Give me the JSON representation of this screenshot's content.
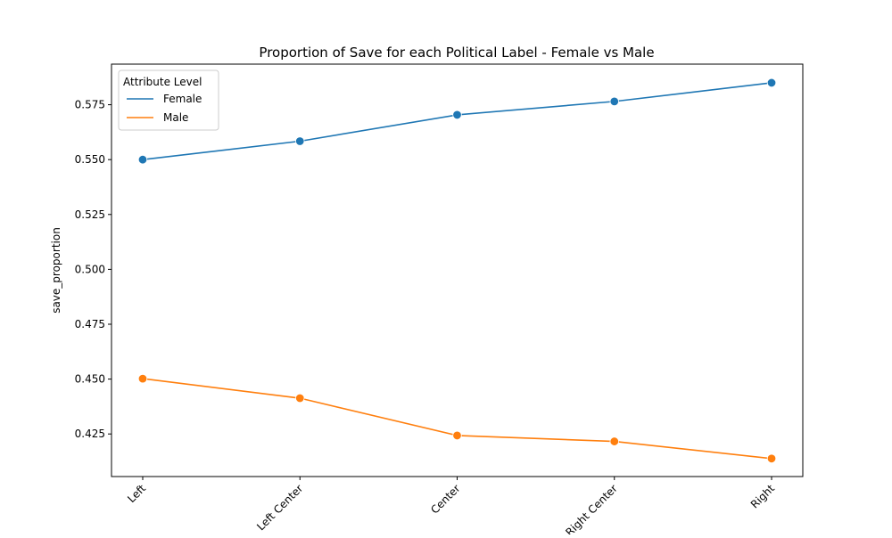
{
  "chart_data": {
    "type": "line",
    "title": "Proportion of Save for each Political Label - Female vs Male",
    "xlabel": "",
    "ylabel": "save_proportion",
    "categories": [
      "Left",
      "Left Center",
      "Center",
      "Right Center",
      "Right"
    ],
    "ylim": [
      0.4056,
      0.5935
    ],
    "yticks": [
      "0.425",
      "0.450",
      "0.475",
      "0.500",
      "0.525",
      "0.550",
      "0.575"
    ],
    "grid": false,
    "legend": {
      "title": "Attribute Level",
      "position": "top-left"
    },
    "series": [
      {
        "name": "Female",
        "color": "#1f77b4",
        "values": [
          0.55,
          0.5584,
          0.5704,
          0.5765,
          0.585
        ]
      },
      {
        "name": "Male",
        "color": "#ff7f0e",
        "values": [
          0.4502,
          0.4413,
          0.4243,
          0.4216,
          0.4138
        ]
      }
    ]
  }
}
